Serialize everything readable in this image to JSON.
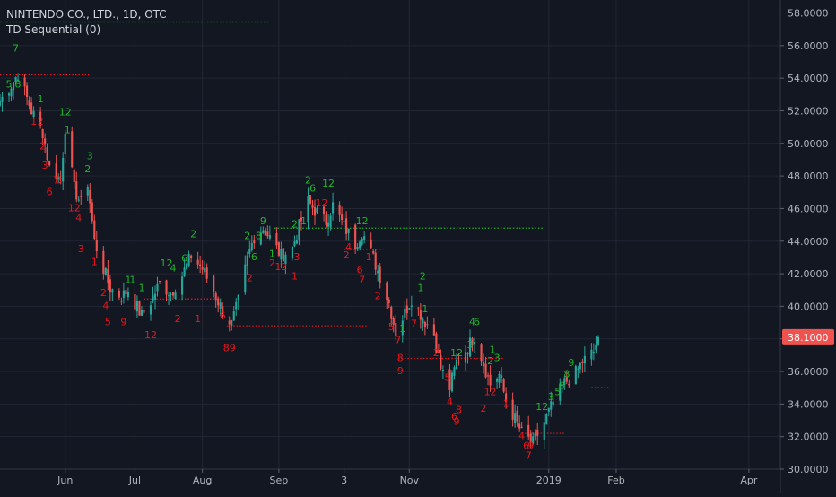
{
  "header": {
    "symbol_line": "NINTENDO CO., LTD., 1D, OTC",
    "indicator_line": "TD Sequential (0)"
  },
  "last_price_label": "38.1000",
  "colors": {
    "background": "#131722",
    "up": "#26a69a",
    "down": "#ef5350",
    "td_up": "#1fb52a",
    "td_down": "#e8171c",
    "price_tag": "#ef5350",
    "grid": "#232734",
    "axis_text": "#b2b5be"
  },
  "chart_data": {
    "type": "candlestick",
    "title": "NINTENDO CO., LTD., 1D, OTC",
    "indicator": "TD Sequential (0)",
    "grid": true,
    "y_axis": {
      "position": "right",
      "ylim": [
        30,
        58.8
      ],
      "ticks": [
        30,
        32,
        34,
        36,
        38,
        40,
        42,
        44,
        46,
        48,
        50,
        52,
        54,
        56,
        58
      ],
      "tick_labels": [
        "30.0000",
        "32.0000",
        "34.0000",
        "36.0000",
        "38.0000",
        "40.0000",
        "42.0000",
        "44.0000",
        "46.0000",
        "48.0000",
        "50.0000",
        "52.0000",
        "54.0000",
        "56.0000",
        "58.0000"
      ]
    },
    "x_axis": {
      "start": "2018-05-03",
      "end": "2019-04-15",
      "tick_labels": [
        {
          "date": "2018-06-01",
          "label": "Jun"
        },
        {
          "date": "2018-07-02",
          "label": "Jul"
        },
        {
          "date": "2018-08-01",
          "label": "Aug"
        },
        {
          "date": "2018-09-04",
          "label": "Sep"
        },
        {
          "date": "2018-10-03",
          "label": "3"
        },
        {
          "date": "2018-11-01",
          "label": "Nov"
        },
        {
          "date": "2019-01-02",
          "label": "2019"
        },
        {
          "date": "2019-02-01",
          "label": "Feb"
        },
        {
          "date": "2019-04-01",
          "label": "Apr"
        }
      ]
    },
    "close_anchors": [
      {
        "date": "2018-05-03",
        "close": 52.6
      },
      {
        "date": "2018-05-08",
        "close": 53.6
      },
      {
        "date": "2018-05-11",
        "close": 54.3
      },
      {
        "date": "2018-05-17",
        "close": 52.0
      },
      {
        "date": "2018-05-22",
        "close": 50.7
      },
      {
        "date": "2018-05-25",
        "close": 48.5
      },
      {
        "date": "2018-05-30",
        "close": 47.8
      },
      {
        "date": "2018-06-01",
        "close": 51.0
      },
      {
        "date": "2018-06-05",
        "close": 47.2
      },
      {
        "date": "2018-06-08",
        "close": 46.3
      },
      {
        "date": "2018-06-11",
        "close": 47.6
      },
      {
        "date": "2018-06-14",
        "close": 44.0
      },
      {
        "date": "2018-06-18",
        "close": 42.3
      },
      {
        "date": "2018-06-21",
        "close": 41.1
      },
      {
        "date": "2018-06-26",
        "close": 40.6
      },
      {
        "date": "2018-06-29",
        "close": 41.0
      },
      {
        "date": "2018-07-05",
        "close": 39.4
      },
      {
        "date": "2018-07-09",
        "close": 40.3
      },
      {
        "date": "2018-07-13",
        "close": 41.4
      },
      {
        "date": "2018-07-18",
        "close": 40.8
      },
      {
        "date": "2018-07-23",
        "close": 41.9
      },
      {
        "date": "2018-07-27",
        "close": 43.1
      },
      {
        "date": "2018-08-01",
        "close": 42.3
      },
      {
        "date": "2018-08-06",
        "close": 40.9
      },
      {
        "date": "2018-08-10",
        "close": 39.7
      },
      {
        "date": "2018-08-14",
        "close": 38.9
      },
      {
        "date": "2018-08-17",
        "close": 40.3
      },
      {
        "date": "2018-08-21",
        "close": 42.9
      },
      {
        "date": "2018-08-24",
        "close": 44.3
      },
      {
        "date": "2018-08-28",
        "close": 44.8
      },
      {
        "date": "2018-08-31",
        "close": 44.2
      },
      {
        "date": "2018-09-05",
        "close": 43.1
      },
      {
        "date": "2018-09-10",
        "close": 43.6
      },
      {
        "date": "2018-09-13",
        "close": 44.9
      },
      {
        "date": "2018-09-17",
        "close": 46.4
      },
      {
        "date": "2018-09-20",
        "close": 45.9
      },
      {
        "date": "2018-09-25",
        "close": 45.2
      },
      {
        "date": "2018-09-28",
        "close": 46.2
      },
      {
        "date": "2018-10-03",
        "close": 44.9
      },
      {
        "date": "2018-10-08",
        "close": 43.8
      },
      {
        "date": "2018-10-11",
        "close": 44.6
      },
      {
        "date": "2018-10-15",
        "close": 43.3
      },
      {
        "date": "2018-10-18",
        "close": 42.2
      },
      {
        "date": "2018-10-23",
        "close": 40.2
      },
      {
        "date": "2018-10-26",
        "close": 38.4
      },
      {
        "date": "2018-10-30",
        "close": 39.6
      },
      {
        "date": "2018-11-02",
        "close": 40.5
      },
      {
        "date": "2018-11-07",
        "close": 39.3
      },
      {
        "date": "2018-11-12",
        "close": 38.3
      },
      {
        "date": "2018-11-15",
        "close": 36.2
      },
      {
        "date": "2018-11-19",
        "close": 35.0
      },
      {
        "date": "2018-11-22",
        "close": 36.6
      },
      {
        "date": "2018-11-27",
        "close": 37.5
      },
      {
        "date": "2018-11-30",
        "close": 38.2
      },
      {
        "date": "2018-12-04",
        "close": 36.5
      },
      {
        "date": "2018-12-07",
        "close": 35.2
      },
      {
        "date": "2018-12-11",
        "close": 35.8
      },
      {
        "date": "2018-12-14",
        "close": 34.2
      },
      {
        "date": "2018-12-18",
        "close": 33.1
      },
      {
        "date": "2018-12-21",
        "close": 32.2
      },
      {
        "date": "2018-12-26",
        "close": 31.6
      },
      {
        "date": "2018-12-31",
        "close": 32.9
      },
      {
        "date": "2019-01-04",
        "close": 34.1
      },
      {
        "date": "2019-01-09",
        "close": 35.3
      },
      {
        "date": "2019-01-14",
        "close": 35.9
      },
      {
        "date": "2019-01-17",
        "close": 36.6
      },
      {
        "date": "2019-01-22",
        "close": 37.2
      },
      {
        "date": "2019-01-24",
        "close": 38.1
      }
    ],
    "last_price": 38.1,
    "td_labels": [
      {
        "date": "2018-05-10",
        "price": 55.8,
        "text": "7",
        "side": "up"
      },
      {
        "date": "2018-05-07",
        "price": 53.6,
        "text": "5",
        "side": "up"
      },
      {
        "date": "2018-05-11",
        "price": 53.6,
        "text": "8",
        "side": "up"
      },
      {
        "date": "2018-05-21",
        "price": 52.7,
        "text": "1",
        "side": "up"
      },
      {
        "date": "2018-05-18",
        "price": 51.3,
        "text": "1",
        "side": "down"
      },
      {
        "date": "2018-05-21",
        "price": 51.3,
        "text": "2",
        "side": "down"
      },
      {
        "date": "2018-05-22",
        "price": 49.8,
        "text": "2",
        "side": "down"
      },
      {
        "date": "2018-05-23",
        "price": 48.6,
        "text": "3",
        "side": "down"
      },
      {
        "date": "2018-05-28",
        "price": 47.7,
        "text": "7",
        "side": "down"
      },
      {
        "date": "2018-05-29",
        "price": 47.7,
        "text": "8",
        "side": "down"
      },
      {
        "date": "2018-05-25",
        "price": 47.0,
        "text": "6",
        "side": "down"
      },
      {
        "date": "2018-06-01",
        "price": 51.9,
        "text": "12",
        "side": "up"
      },
      {
        "date": "2018-06-02",
        "price": 50.8,
        "text": "1",
        "side": "up"
      },
      {
        "date": "2018-06-05",
        "price": 46.0,
        "text": "12",
        "side": "down"
      },
      {
        "date": "2018-06-07",
        "price": 45.4,
        "text": "4",
        "side": "down"
      },
      {
        "date": "2018-06-11",
        "price": 48.4,
        "text": "2",
        "side": "up"
      },
      {
        "date": "2018-06-12",
        "price": 49.2,
        "text": "3",
        "side": "up"
      },
      {
        "date": "2018-06-08",
        "price": 43.5,
        "text": "3",
        "side": "down"
      },
      {
        "date": "2018-06-14",
        "price": 42.7,
        "text": "1",
        "side": "down"
      },
      {
        "date": "2018-06-18",
        "price": 40.8,
        "text": "2",
        "side": "down"
      },
      {
        "date": "2018-06-19",
        "price": 40.0,
        "text": "4",
        "side": "down"
      },
      {
        "date": "2018-06-20",
        "price": 39.0,
        "text": "5",
        "side": "down"
      },
      {
        "date": "2018-06-27",
        "price": 39.0,
        "text": "9",
        "side": "down"
      },
      {
        "date": "2018-06-29",
        "price": 41.6,
        "text": "1",
        "side": "up"
      },
      {
        "date": "2018-07-01",
        "price": 41.6,
        "text": "1",
        "side": "up"
      },
      {
        "date": "2018-07-05",
        "price": 41.1,
        "text": "1",
        "side": "up"
      },
      {
        "date": "2018-07-09",
        "price": 38.2,
        "text": "12",
        "side": "down"
      },
      {
        "date": "2018-07-16",
        "price": 42.6,
        "text": "12",
        "side": "up"
      },
      {
        "date": "2018-07-19",
        "price": 42.3,
        "text": "4",
        "side": "up"
      },
      {
        "date": "2018-07-24",
        "price": 42.9,
        "text": "6",
        "side": "up"
      },
      {
        "date": "2018-07-28",
        "price": 44.4,
        "text": "2",
        "side": "up"
      },
      {
        "date": "2018-07-21",
        "price": 39.2,
        "text": "2",
        "side": "down"
      },
      {
        "date": "2018-07-30",
        "price": 39.2,
        "text": "1",
        "side": "down"
      },
      {
        "date": "2018-08-10",
        "price": 39.4,
        "text": "6",
        "side": "down"
      },
      {
        "date": "2018-08-13",
        "price": 37.4,
        "text": "89",
        "side": "down"
      },
      {
        "date": "2018-08-21",
        "price": 44.3,
        "text": "2",
        "side": "up"
      },
      {
        "date": "2018-08-24",
        "price": 43.0,
        "text": "6",
        "side": "up"
      },
      {
        "date": "2018-08-26",
        "price": 44.3,
        "text": "8",
        "side": "up"
      },
      {
        "date": "2018-08-28",
        "price": 45.2,
        "text": "9",
        "side": "up"
      },
      {
        "date": "2018-08-22",
        "price": 41.7,
        "text": "2",
        "side": "down"
      },
      {
        "date": "2018-09-01",
        "price": 43.2,
        "text": "1",
        "side": "up"
      },
      {
        "date": "2018-09-01",
        "price": 42.6,
        "text": "2",
        "side": "down"
      },
      {
        "date": "2018-09-05",
        "price": 42.4,
        "text": "12",
        "side": "down"
      },
      {
        "date": "2018-09-11",
        "price": 45.0,
        "text": "2",
        "side": "up"
      },
      {
        "date": "2018-09-12",
        "price": 43.0,
        "text": "3",
        "side": "down"
      },
      {
        "date": "2018-09-11",
        "price": 41.8,
        "text": "1",
        "side": "down"
      },
      {
        "date": "2018-09-15",
        "price": 45.2,
        "text": "1",
        "side": "up"
      },
      {
        "date": "2018-09-17",
        "price": 47.7,
        "text": "2",
        "side": "up"
      },
      {
        "date": "2018-09-19",
        "price": 47.2,
        "text": "6",
        "side": "up"
      },
      {
        "date": "2018-09-26",
        "price": 47.5,
        "text": "12",
        "side": "up"
      },
      {
        "date": "2018-09-23",
        "price": 46.3,
        "text": "12",
        "side": "down"
      },
      {
        "date": "2018-10-05",
        "price": 43.6,
        "text": "4",
        "side": "down"
      },
      {
        "date": "2018-10-04",
        "price": 43.1,
        "text": "2",
        "side": "down"
      },
      {
        "date": "2018-10-11",
        "price": 45.2,
        "text": "12",
        "side": "up"
      },
      {
        "date": "2018-10-10",
        "price": 42.2,
        "text": "6",
        "side": "down"
      },
      {
        "date": "2018-10-11",
        "price": 41.6,
        "text": "7",
        "side": "down"
      },
      {
        "date": "2018-10-14",
        "price": 43.0,
        "text": "1",
        "side": "down"
      },
      {
        "date": "2018-10-18",
        "price": 40.6,
        "text": "2",
        "side": "down"
      },
      {
        "date": "2018-10-24",
        "price": 38.7,
        "text": "5",
        "side": "down"
      },
      {
        "date": "2018-10-27",
        "price": 37.9,
        "text": "7",
        "side": "down"
      },
      {
        "date": "2018-10-28",
        "price": 36.8,
        "text": "8",
        "side": "down"
      },
      {
        "date": "2018-10-28",
        "price": 36.0,
        "text": "9",
        "side": "down"
      },
      {
        "date": "2018-10-29",
        "price": 38.6,
        "text": "1",
        "side": "up"
      },
      {
        "date": "2018-11-07",
        "price": 41.8,
        "text": "2",
        "side": "up"
      },
      {
        "date": "2018-11-06",
        "price": 41.1,
        "text": "1",
        "side": "up"
      },
      {
        "date": "2018-11-08",
        "price": 39.8,
        "text": "1",
        "side": "up"
      },
      {
        "date": "2018-11-03",
        "price": 38.9,
        "text": "7",
        "side": "down"
      },
      {
        "date": "2018-11-13",
        "price": 37.1,
        "text": "2",
        "side": "down"
      },
      {
        "date": "2018-11-18",
        "price": 35.6,
        "text": "5",
        "side": "down"
      },
      {
        "date": "2018-11-19",
        "price": 34.1,
        "text": "4",
        "side": "down"
      },
      {
        "date": "2018-11-21",
        "price": 33.2,
        "text": "6",
        "side": "down"
      },
      {
        "date": "2018-11-23",
        "price": 33.6,
        "text": "8",
        "side": "down"
      },
      {
        "date": "2018-11-22",
        "price": 32.9,
        "text": "9",
        "side": "down"
      },
      {
        "date": "2018-11-22",
        "price": 37.1,
        "text": "12",
        "side": "up"
      },
      {
        "date": "2018-11-28",
        "price": 37.6,
        "text": "3",
        "side": "up"
      },
      {
        "date": "2018-11-29",
        "price": 39.0,
        "text": "4",
        "side": "up"
      },
      {
        "date": "2018-12-01",
        "price": 39.0,
        "text": "6",
        "side": "up"
      },
      {
        "date": "2018-12-04",
        "price": 33.7,
        "text": "2",
        "side": "down"
      },
      {
        "date": "2018-12-07",
        "price": 34.7,
        "text": "12",
        "side": "down"
      },
      {
        "date": "2018-12-08",
        "price": 37.3,
        "text": "1",
        "side": "up"
      },
      {
        "date": "2018-12-10",
        "price": 36.8,
        "text": "3",
        "side": "up"
      },
      {
        "date": "2018-12-07",
        "price": 36.6,
        "text": "2",
        "side": "up"
      },
      {
        "date": "2018-12-14",
        "price": 34.0,
        "text": "1",
        "side": "down"
      },
      {
        "date": "2018-12-21",
        "price": 32.0,
        "text": "4",
        "side": "down"
      },
      {
        "date": "2018-12-23",
        "price": 31.4,
        "text": "6",
        "side": "down"
      },
      {
        "date": "2018-12-25",
        "price": 31.4,
        "text": "9",
        "side": "down"
      },
      {
        "date": "2018-12-24",
        "price": 30.8,
        "text": "7",
        "side": "down"
      },
      {
        "date": "2018-12-30",
        "price": 33.8,
        "text": "12",
        "side": "up"
      },
      {
        "date": "2019-01-03",
        "price": 34.4,
        "text": "3",
        "side": "up"
      },
      {
        "date": "2019-01-06",
        "price": 34.7,
        "text": "5",
        "side": "up"
      },
      {
        "date": "2019-01-08",
        "price": 35.1,
        "text": "8",
        "side": "up"
      },
      {
        "date": "2019-01-10",
        "price": 35.8,
        "text": "8",
        "side": "up"
      },
      {
        "date": "2019-01-12",
        "price": 36.5,
        "text": "9",
        "side": "up"
      }
    ],
    "support_resistance_lines": [
      {
        "price": 57.45,
        "start": "2018-05-03",
        "end": "2018-08-31",
        "color": "td_up"
      },
      {
        "price": 54.2,
        "start": "2018-05-03",
        "end": "2018-06-12",
        "color": "td_down"
      },
      {
        "price": 40.45,
        "start": "2018-07-06",
        "end": "2018-08-07",
        "color": "td_down"
      },
      {
        "price": 38.8,
        "start": "2018-08-12",
        "end": "2018-10-13",
        "color": "td_down"
      },
      {
        "price": 44.8,
        "start": "2018-09-02",
        "end": "2018-12-31",
        "color": "td_up"
      },
      {
        "price": 43.5,
        "start": "2018-10-03",
        "end": "2018-10-20",
        "color": "td_down"
      },
      {
        "price": 36.8,
        "start": "2018-10-27",
        "end": "2018-12-13",
        "color": "td_down"
      },
      {
        "price": 32.2,
        "start": "2018-12-21",
        "end": "2019-01-09",
        "color": "td_down"
      },
      {
        "price": 35.0,
        "start": "2019-01-21",
        "end": "2019-01-29",
        "color": "td_up"
      }
    ]
  }
}
